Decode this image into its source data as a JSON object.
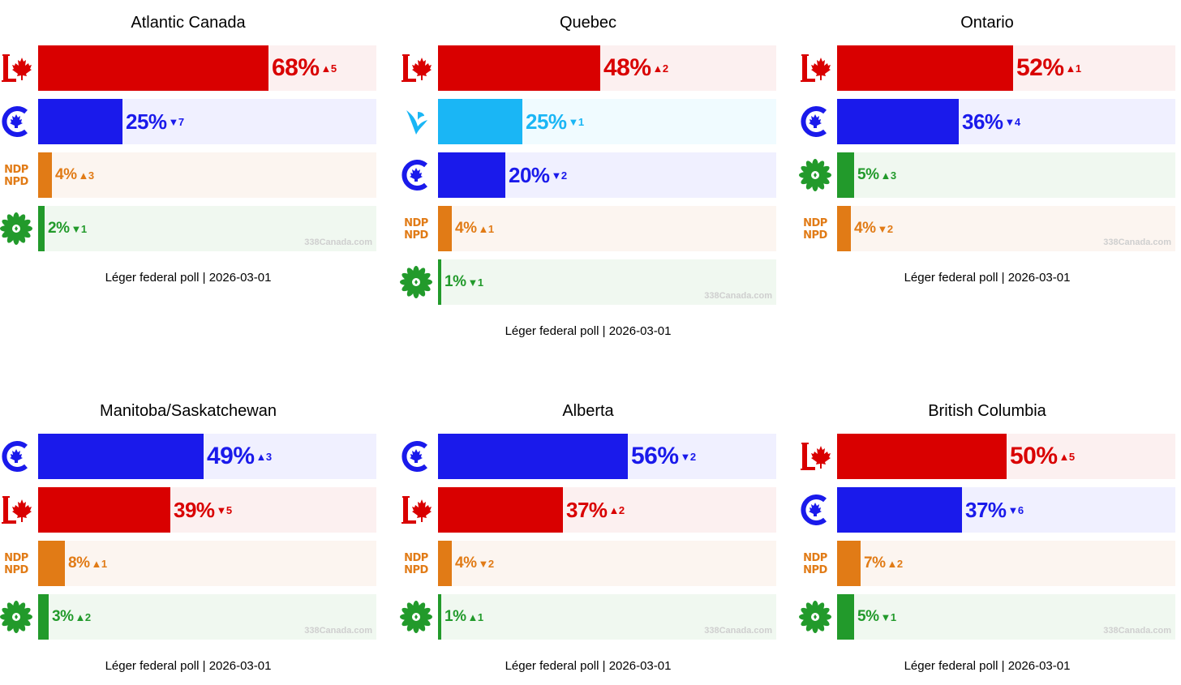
{
  "watermark": "338Canada.com",
  "parties": {
    "LPC": {
      "color": "#d90000",
      "bg": "#fcf0f0",
      "icon": "liberal-logo-icon"
    },
    "CPC": {
      "color": "#1a1aeb",
      "bg": "#f0f0ff",
      "icon": "conservative-logo-icon"
    },
    "NDP": {
      "color": "#e17b16",
      "bg": "#fcf5f0",
      "icon": "ndp-logo-icon",
      "logo_lines": [
        "NDP",
        "NPD"
      ]
    },
    "GPC": {
      "color": "#229a2b",
      "bg": "#f0f8f0",
      "icon": "green-logo-icon"
    },
    "BQ": {
      "color": "#1ab6f5",
      "bg": "#f0fbff",
      "icon": "bloc-logo-icon"
    }
  },
  "chart_data": [
    {
      "type": "bar",
      "title": "Atlantic Canada",
      "source": "Léger federal poll | 2026-03-01",
      "xlim": [
        0,
        100
      ],
      "categories": [
        "LPC",
        "CPC",
        "NDP",
        "GPC"
      ],
      "values": [
        68,
        25,
        4,
        2
      ],
      "labels": [
        "68%",
        "25%",
        "4%",
        "2%"
      ],
      "changes": [
        {
          "dir": "up",
          "value": "5"
        },
        {
          "dir": "down",
          "value": "7"
        },
        {
          "dir": "up",
          "value": "3"
        },
        {
          "dir": "down",
          "value": "1"
        }
      ]
    },
    {
      "type": "bar",
      "title": "Quebec",
      "source": "Léger federal poll | 2026-03-01",
      "xlim": [
        0,
        100
      ],
      "categories": [
        "LPC",
        "BQ",
        "CPC",
        "NDP",
        "GPC"
      ],
      "values": [
        48,
        25,
        20,
        4,
        1
      ],
      "labels": [
        "48%",
        "25%",
        "20%",
        "4%",
        "1%"
      ],
      "changes": [
        {
          "dir": "up",
          "value": "2"
        },
        {
          "dir": "down",
          "value": "1"
        },
        {
          "dir": "down",
          "value": "2"
        },
        {
          "dir": "up",
          "value": "1"
        },
        {
          "dir": "down",
          "value": "1"
        }
      ]
    },
    {
      "type": "bar",
      "title": "Ontario",
      "source": "Léger federal poll | 2026-03-01",
      "xlim": [
        0,
        100
      ],
      "categories": [
        "LPC",
        "CPC",
        "GPC",
        "NDP"
      ],
      "values": [
        52,
        36,
        5,
        4
      ],
      "labels": [
        "52%",
        "36%",
        "5%",
        "4%"
      ],
      "changes": [
        {
          "dir": "up",
          "value": "1"
        },
        {
          "dir": "down",
          "value": "4"
        },
        {
          "dir": "up",
          "value": "3"
        },
        {
          "dir": "down",
          "value": "2"
        }
      ]
    },
    {
      "type": "bar",
      "title": "Manitoba/Saskatchewan",
      "source": "Léger federal poll | 2026-03-01",
      "xlim": [
        0,
        100
      ],
      "categories": [
        "CPC",
        "LPC",
        "NDP",
        "GPC"
      ],
      "values": [
        49,
        39,
        8,
        3
      ],
      "labels": [
        "49%",
        "39%",
        "8%",
        "3%"
      ],
      "changes": [
        {
          "dir": "up",
          "value": "3"
        },
        {
          "dir": "down",
          "value": "5"
        },
        {
          "dir": "up",
          "value": "1"
        },
        {
          "dir": "up",
          "value": "2"
        }
      ]
    },
    {
      "type": "bar",
      "title": "Alberta",
      "source": "Léger federal poll | 2026-03-01",
      "xlim": [
        0,
        100
      ],
      "categories": [
        "CPC",
        "LPC",
        "NDP",
        "GPC"
      ],
      "values": [
        56,
        37,
        4,
        1
      ],
      "labels": [
        "56%",
        "37%",
        "4%",
        "1%"
      ],
      "changes": [
        {
          "dir": "down",
          "value": "2"
        },
        {
          "dir": "up",
          "value": "2"
        },
        {
          "dir": "down",
          "value": "2"
        },
        {
          "dir": "up",
          "value": "1"
        }
      ]
    },
    {
      "type": "bar",
      "title": "British Columbia",
      "source": "Léger federal poll | 2026-03-01",
      "xlim": [
        0,
        100
      ],
      "categories": [
        "LPC",
        "CPC",
        "NDP",
        "GPC"
      ],
      "values": [
        50,
        37,
        7,
        5
      ],
      "labels": [
        "50%",
        "37%",
        "7%",
        "5%"
      ],
      "changes": [
        {
          "dir": "up",
          "value": "5"
        },
        {
          "dir": "down",
          "value": "6"
        },
        {
          "dir": "up",
          "value": "2"
        },
        {
          "dir": "down",
          "value": "1"
        }
      ]
    }
  ]
}
